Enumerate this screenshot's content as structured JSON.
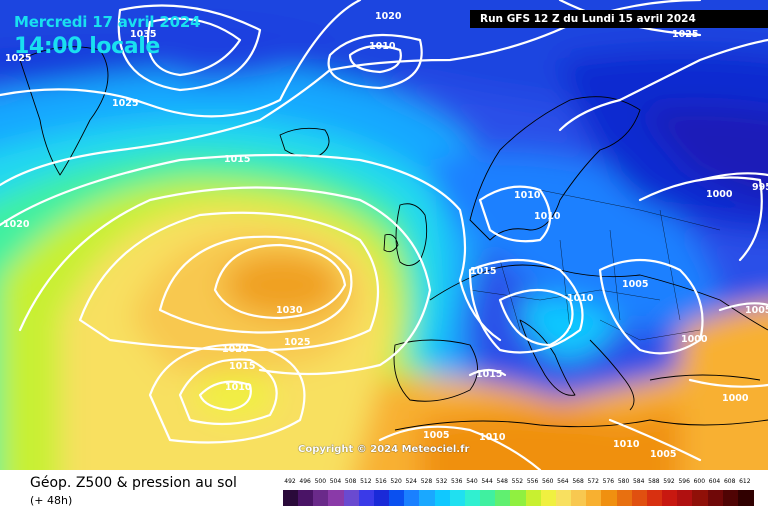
{
  "header": {
    "date_line": "Mercredi 17 avril 2024",
    "time_line": "14:00 locale",
    "run_info": "Run GFS 12 Z du Lundi 15 avril 2024"
  },
  "map": {
    "copyright": "Copyright © 2024 Meteociel.fr",
    "isobar_labels": [
      "1035",
      "1025",
      "1020",
      "1010",
      "1025",
      "1025",
      "1015",
      "1020",
      "1030",
      "1025",
      "1020",
      "1015",
      "1010",
      "1010",
      "1010",
      "1015",
      "1010",
      "1005",
      "1000",
      "1000",
      "995",
      "1005",
      "1000",
      "1005",
      "1015",
      "1005",
      "1010",
      "1010"
    ]
  },
  "footer": {
    "title": "Géop. Z500 & pression au sol",
    "subtitle": "(+ 48h)"
  },
  "legend": {
    "labels": [
      "492",
      "496",
      "500",
      "504",
      "508",
      "512",
      "516",
      "520",
      "524",
      "528",
      "532",
      "536",
      "540",
      "544",
      "548",
      "552",
      "556",
      "560",
      "564",
      "568",
      "572",
      "576",
      "580",
      "584",
      "588",
      "592",
      "596",
      "600",
      "604",
      "608",
      "612"
    ],
    "colors": [
      "#2a0a3a",
      "#4a1466",
      "#6a2a8a",
      "#8a3aa8",
      "#6a4ad0",
      "#3a3ae8",
      "#1a2ad8",
      "#0a50f0",
      "#1a80ff",
      "#1aa8ff",
      "#10c8ff",
      "#20e0f0",
      "#30f0d0",
      "#40f0a0",
      "#60f070",
      "#90f040",
      "#c8f030",
      "#f0f040",
      "#f8e060",
      "#f8c850",
      "#f8b030",
      "#f09010",
      "#e87010",
      "#e05010",
      "#d83010",
      "#c81810",
      "#b01010",
      "#901008",
      "#700808",
      "#500404",
      "#300000"
    ]
  }
}
